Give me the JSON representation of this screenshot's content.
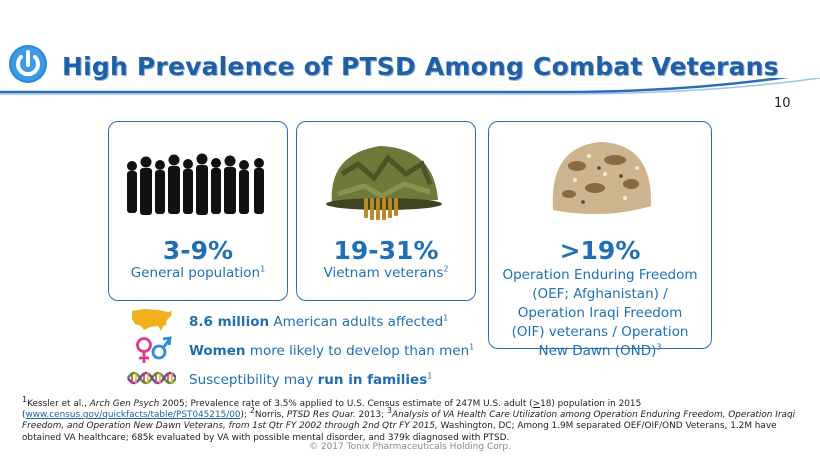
{
  "header": {
    "title": "High Prevalence of PTSD Among Combat Veterans",
    "page_number": "10",
    "logo_icon": "power-button-logo-icon"
  },
  "colors": {
    "accent": "#1f6fb5",
    "brand": "#1f5fa8"
  },
  "cards": [
    {
      "stat": "3-9%",
      "desc": "General population",
      "sup": "1",
      "image": "crowd-silhouette-icon"
    },
    {
      "stat": "19-31%",
      "desc": "Vietnam veterans",
      "sup": "2",
      "image": "vietnam-helmet-icon"
    },
    {
      "stat": ">19%",
      "desc_lines": [
        "Operation Enduring Freedom",
        "(OEF; Afghanistan) /",
        "Operation Iraqi Freedom",
        "(OIF) veterans / Operation",
        "New Dawn (OND)"
      ],
      "sup": "3",
      "image": "desert-helmet-icon"
    }
  ],
  "facts": [
    {
      "icon": "usa-map-icon",
      "bold": "8.6 million",
      "text": " American adults affected",
      "sup": "1"
    },
    {
      "icon": "gender-symbols-icon",
      "bold": "Women",
      "text": " more likely to develop than men",
      "sup": "1"
    },
    {
      "icon": "dna-helix-icon",
      "pre": "Susceptibility may ",
      "bold": "run in families",
      "sup": "1"
    }
  ],
  "footnote": {
    "s1": "1",
    "kessler": "Kessler et al., ",
    "journal1": "Arch Gen Psych",
    "t1": " 2005; Prevalence rate of 3.5% applied to U.S. Census estimate of 247M U.S. adult (",
    "gte": ">",
    "t1b": "18) population in 2015",
    "open_paren": "(",
    "link": "www.census.gov/quickfacts/table/PST045215/00",
    "t2": ");  ",
    "s2": "2",
    "norris": "Norris, ",
    "journal2": "PTSD Res Quar.",
    "t3": " 2013;  ",
    "s3": "3",
    "analysis": "Analysis of VA Health Care Utilization among Operation Enduring Freedom, Operation Iraqi Freedom, and Operation New Dawn Veterans, from 1st Qtr FY 2002 through 2nd Qtr FY 2015,",
    "t4": " Washington, DC; Among 1.9M separated OEF/OIF/OND Veterans, 1.2M have obtained VA healthcare; 685k evaluated by VA with possible mental disorder, and 379k diagnosed with PTSD."
  },
  "copyright": "© 2017 Tonix Pharmaceuticals Holding Corp."
}
